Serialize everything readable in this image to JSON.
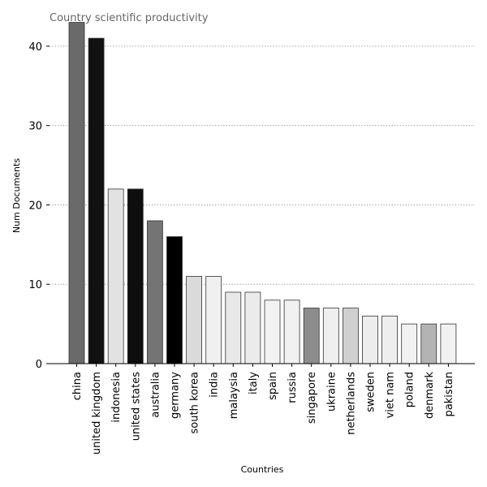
{
  "chart_data": {
    "type": "bar",
    "title": "Country scientific productivity",
    "xlabel": "Countries",
    "ylabel": "Num Documents",
    "ylim": [
      0,
      45
    ],
    "yticks": [
      0,
      10,
      20,
      30,
      40
    ],
    "grid": "horizontal dotted",
    "categories": [
      "china",
      "united kingdom",
      "indonesia",
      "united states",
      "australia",
      "germany",
      "south korea",
      "india",
      "malaysia",
      "italy",
      "spain",
      "russia",
      "singapore",
      "ukraine",
      "netherlands",
      "sweden",
      "viet nam",
      "poland",
      "denmark",
      "pakistan"
    ],
    "values": [
      43,
      41,
      22,
      22,
      18,
      16,
      11,
      11,
      9,
      9,
      8,
      8,
      7,
      7,
      7,
      6,
      6,
      5,
      5,
      5
    ],
    "colors": [
      "#6a6a6a",
      "#111111",
      "#e2e2e2",
      "#0e0e0e",
      "#747474",
      "#000000",
      "#dadada",
      "#f0f0f0",
      "#e8e8e8",
      "#ebebeb",
      "#f2f2f2",
      "#f1f1f1",
      "#8c8c8c",
      "#efefef",
      "#d0d0d0",
      "#ededed",
      "#eeeeee",
      "#f1f1f1",
      "#b3b3b3",
      "#f1f1f1"
    ]
  }
}
